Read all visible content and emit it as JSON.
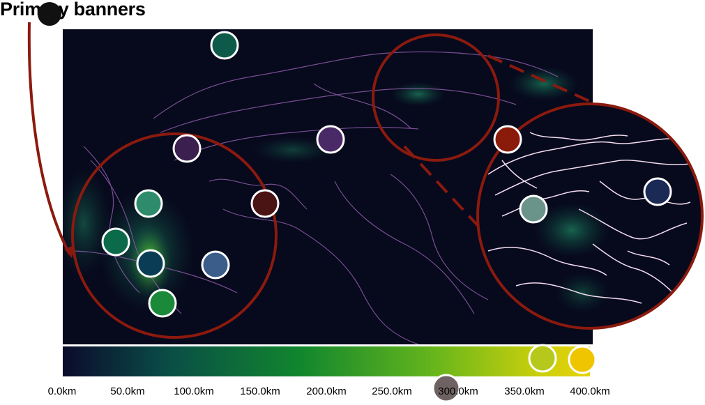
{
  "title": "Primary banners",
  "colors": {
    "accent_ring": "#8b1a0e",
    "map_background": "#07091c",
    "contour": "#8a5ba6",
    "inset_contour": "#f2dcef"
  },
  "colorbar": {
    "gradient": [
      "#0b0a2c",
      "#0a4d46",
      "#11862e",
      "#65b51c",
      "#c9cf0c",
      "#e8d20a"
    ],
    "tick_labels": [
      "0.0km",
      "50.0km",
      "100.0km",
      "150.0km",
      "200.0km",
      "250.0km",
      "300.0km",
      "350.0km",
      "400.0km"
    ]
  },
  "markers": [
    {
      "color": "#0e5a4a"
    },
    {
      "color": "#3b1f4f"
    },
    {
      "color": "#4a2a66"
    },
    {
      "color": "#8a1a0a"
    },
    {
      "color": "#1a2a55"
    },
    {
      "color": "#6a938a"
    },
    {
      "color": "#2e8b6b"
    },
    {
      "color": "#4a1414"
    },
    {
      "color": "#0a6a4a"
    },
    {
      "color": "#0a3d55"
    },
    {
      "color": "#3a5d8a"
    },
    {
      "color": "#1a8a3a"
    },
    {
      "color": "#b7c81c"
    },
    {
      "color": "#efc400"
    },
    {
      "color": "#6e6362"
    },
    {
      "color": "#111111"
    }
  ]
}
